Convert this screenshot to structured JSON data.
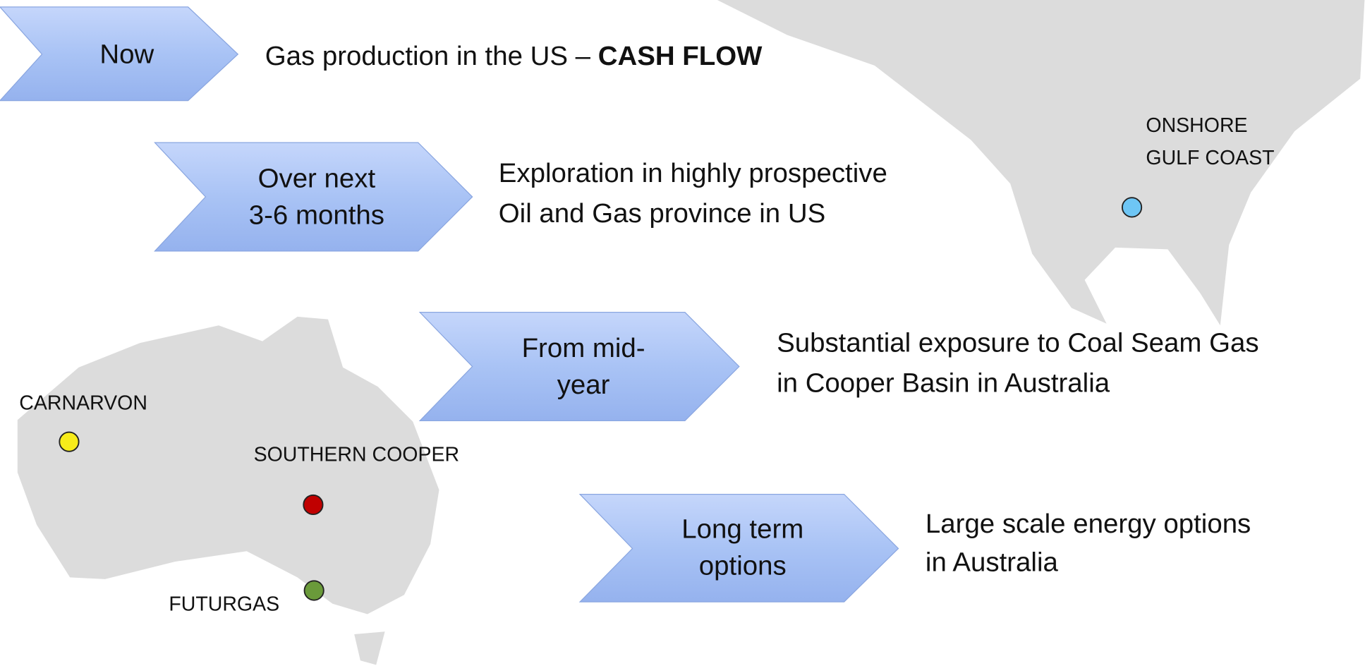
{
  "steps": [
    {
      "label": [
        "Now"
      ],
      "description": [
        {
          "text": "Gas production in the US – ",
          "bold": "CASH FLOW"
        }
      ]
    },
    {
      "label": [
        "Over next",
        "3-6 months"
      ],
      "description": [
        "Exploration in highly prospective",
        "Oil and Gas province in US"
      ]
    },
    {
      "label": [
        "From mid-",
        "year"
      ],
      "description": [
        "Substantial exposure to Coal Seam Gas",
        "in Cooper Basin in Australia"
      ]
    },
    {
      "label": [
        "Long term",
        "options"
      ],
      "description": [
        "Large scale energy options",
        "in Australia"
      ]
    }
  ],
  "locations": [
    {
      "label": [
        "ONSHORE",
        "GULF COAST"
      ],
      "color": "#6ec6f5"
    },
    {
      "label": [
        "CARNARVON"
      ],
      "color": "#f7ec1a"
    },
    {
      "label": [
        "SOUTHERN COOPER"
      ],
      "color": "#c00000"
    },
    {
      "label": [
        "FUTURGAS"
      ],
      "color": "#6a9a3a"
    }
  ]
}
